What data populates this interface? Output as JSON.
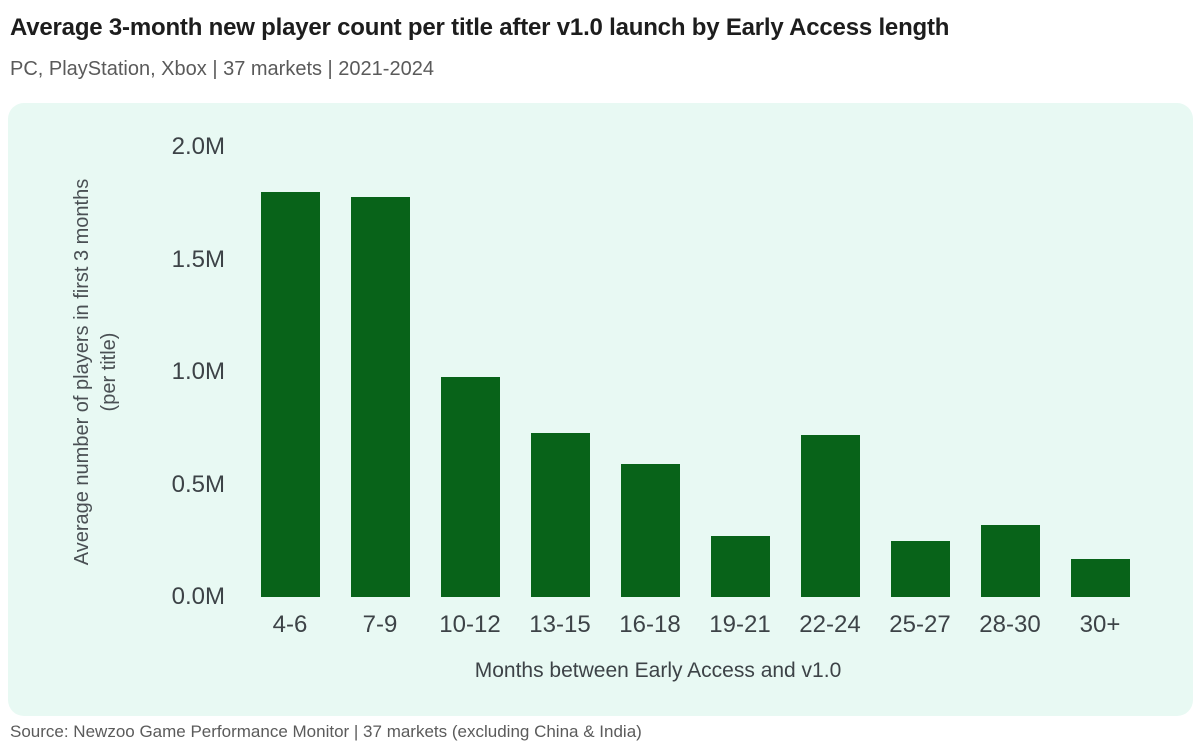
{
  "header": {
    "title": "Average 3-month new player count per title after v1.0 launch by Early Access length",
    "subtitle": "PC, PlayStation, Xbox | 37 markets | 2021-2024"
  },
  "chart_data": {
    "type": "bar",
    "title": "Average 3-month new player count per title after v1.0 launch by Early Access length",
    "subtitle": "PC, PlayStation, Xbox | 37 markets | 2021-2024",
    "categories": [
      "4-6",
      "7-9",
      "10-12",
      "13-15",
      "16-18",
      "19-21",
      "22-24",
      "25-27",
      "28-30",
      "30+"
    ],
    "values": [
      1.8,
      1.78,
      0.98,
      0.73,
      0.59,
      0.27,
      0.72,
      0.25,
      0.32,
      0.17
    ],
    "unit": "M players",
    "xlabel": "Months between Early Access and v1.0",
    "ylabel_line1": "Average number of players in first 3 months",
    "ylabel_line2": "(per title)",
    "ytick_labels": [
      "0.0M",
      "0.5M",
      "1.0M",
      "1.5M",
      "2.0M"
    ],
    "ytick_values": [
      0,
      0.5,
      1.0,
      1.5,
      2.0
    ],
    "ylim": [
      0,
      2.0
    ],
    "grid": false,
    "legend": "none",
    "bar_color": "#086319",
    "panel_bg": "#e8f9f3"
  },
  "footer": {
    "source": "Source: Newzoo Game Performance Monitor | 37 markets (excluding China & India)"
  }
}
